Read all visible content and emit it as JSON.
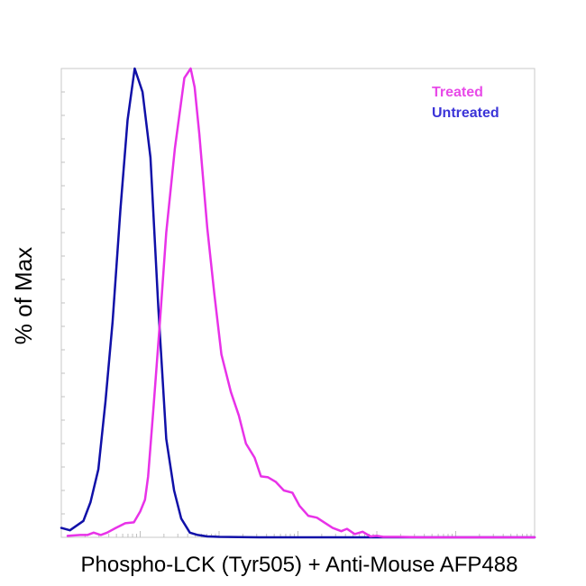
{
  "chart_data": {
    "type": "line",
    "title": "",
    "xlabel": "Phospho-LCK (Tyr505) + Anti-Mouse AFP488",
    "ylabel": "% of Max",
    "xscale": "log",
    "x_decades": 6,
    "xlim": [
      0,
      6
    ],
    "ylim": [
      0,
      100
    ],
    "grid": false,
    "legend": {
      "placement": "top-right",
      "entries": [
        "Treated",
        "Untreated"
      ]
    },
    "series": [
      {
        "name": "Treated",
        "color": "#e832e8",
        "x": [
          0.08,
          0.24,
          0.33,
          0.41,
          0.5,
          0.58,
          0.69,
          0.81,
          0.92,
          1.0,
          1.06,
          1.1,
          1.17,
          1.25,
          1.33,
          1.44,
          1.56,
          1.64,
          1.69,
          1.75,
          1.85,
          1.94,
          2.03,
          2.15,
          2.25,
          2.34,
          2.45,
          2.53,
          2.62,
          2.72,
          2.82,
          2.93,
          3.02,
          3.13,
          3.24,
          3.35,
          3.44,
          3.55,
          3.62,
          3.72,
          3.82,
          3.92,
          4.0,
          4.08,
          4.27,
          4.58,
          4.9,
          5.3,
          5.7,
          6.0
        ],
        "y": [
          0.3,
          0.5,
          0.5,
          1.0,
          0.5,
          1.0,
          2.0,
          3.0,
          3.2,
          5.5,
          8.0,
          13.0,
          28.0,
          46.0,
          65.0,
          83.0,
          98.0,
          100.0,
          96.0,
          86.0,
          66.0,
          52.0,
          39.0,
          31.0,
          26.0,
          20.0,
          17.0,
          13.0,
          12.8,
          11.8,
          10.0,
          9.5,
          6.7,
          4.6,
          4.2,
          3.0,
          2.0,
          1.3,
          1.8,
          0.7,
          1.2,
          0.2,
          0.3,
          0.1,
          0.1,
          0.0,
          0.0,
          0.0,
          0.0,
          0.0
        ]
      },
      {
        "name": "Untreated",
        "color": "#1010a8",
        "x": [
          0.0,
          0.11,
          0.28,
          0.37,
          0.47,
          0.56,
          0.65,
          0.75,
          0.84,
          0.93,
          1.03,
          1.13,
          1.23,
          1.33,
          1.43,
          1.52,
          1.63,
          1.73,
          1.85,
          2.0,
          2.5,
          3.0,
          4.0,
          5.0,
          6.0
        ],
        "y": [
          2.0,
          1.5,
          3.5,
          7.5,
          14.5,
          29.0,
          46.0,
          70.0,
          89.0,
          100.0,
          95.0,
          81.0,
          49.0,
          21.0,
          10.0,
          4.0,
          1.0,
          0.5,
          0.2,
          0.1,
          0.0,
          0.0,
          0.0,
          0.0,
          0.0
        ]
      }
    ]
  }
}
